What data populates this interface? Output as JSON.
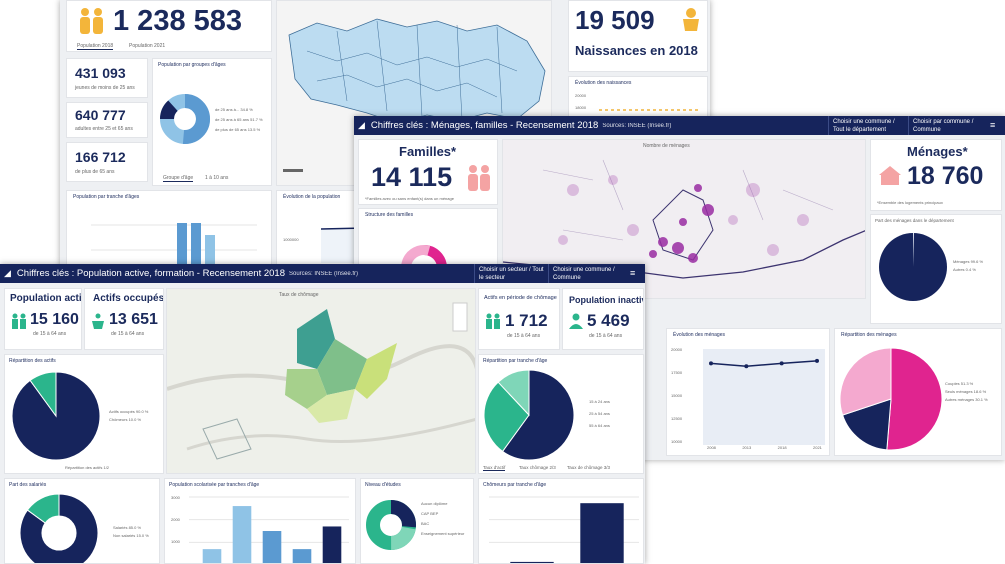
{
  "colors": {
    "navy": "#16245c",
    "teal": "#2bb58c",
    "magenta": "#e0248f",
    "pink": "#f4a9cf",
    "lightblue": "#8fc3e6",
    "steel": "#5b9ad1",
    "purple": "#a8449e",
    "lime": "#c9e07a"
  },
  "back": {
    "population": "1 238 583",
    "pop_tabs": [
      "Population 2018",
      "Population 2021"
    ],
    "jeunes_value": "431 093",
    "jeunes_label": "jeunes de moins de 25 ans",
    "adultes_value": "640 777",
    "adultes_label": "adultes entre 25 et 65 ans",
    "seniors_value": "166 712",
    "seniors_label": "de plus de 65 ans",
    "groupes_title": "Population par groupes d'âges",
    "groupes_legend": [
      "de 25 ans à... 34.8 %",
      "de 25 ans à 65 ans 51.7 %",
      "de plus de 65 ans 13.5 %"
    ],
    "groupes_tabs": [
      "Groupe d'âge",
      "1 à 10 ans"
    ],
    "tranche_title": "Population par tranche d'âges",
    "evolution_title": "Évolution de la population",
    "evolution_axis": "1000000",
    "naissances_value": "19 509",
    "naissances_label": "Naissances en 2018",
    "evol_naiss_title": "Évolution des naissances",
    "evol_naiss_ticks": [
      "20000",
      "18000"
    ]
  },
  "middle": {
    "title": "Chiffres clés : Ménages, familles - Recensement 2018",
    "source": "Sources: INSEE (Insee.fr)",
    "commune_select": "Choisir une commune / Tout le département",
    "commune_select2": "Choisir par commune / Commune",
    "familles_title": "Familles*",
    "familles_value": "14 115",
    "familles_note": "*Familles avec ou sans enfant(s) dans un ménage",
    "structure_title": "Structure des familles",
    "map_title": "Nombre de ménages",
    "menages_title": "Ménages*",
    "menages_value": "18 760",
    "menages_note": "*Ensemble des logements principaux",
    "part_title": "Part des ménages dans le département",
    "part_legend": [
      "Ménages 99.6 %",
      "Autres 0.4 %"
    ],
    "evol_title": "Évolution des ménages",
    "evol_years": [
      "2008",
      "2013",
      "2018",
      "2021"
    ],
    "evol_ticks": [
      "20000",
      "17500",
      "15000",
      "12500",
      "10000"
    ],
    "repartition_title": "Répartition des ménages",
    "repartition_legend": [
      "Couples 51.3 %",
      "Seuls ménages 18.6 %",
      "Autres ménages 30.1 %"
    ]
  },
  "front": {
    "title": "Chiffres clés : Population active, formation - Recensement 2018",
    "source": "Sources: INSEE (Insee.fr)",
    "commune_select": "Choisir un secteur / Tout le secteur",
    "commune_select2": "Choisir une commune / Commune",
    "pop_active_title": "Population active",
    "pop_active_value": "15 160",
    "pop_active_label": "de 15 à 64 ans",
    "actifs_title": "Actifs occupés",
    "actifs_value": "13 651",
    "actifs_label": "de 15 à 64 ans",
    "map_title": "Taux de chômage",
    "chomage_title": "Actifs en période de chômage",
    "chomage_value": "1 712",
    "chomage_label": "de 15 à 64 ans",
    "inactive_title": "Population inactive",
    "inactive_value": "5 469",
    "inactive_label": "de 15 à 64 ans",
    "repartition_title": "Répartition des actifs",
    "repartition_legend": [
      "Actifs occupés 90.0 %",
      "Chômeurs 10.0 %"
    ],
    "repartition_footer": "Répartition des actifs 1/2",
    "tranche_title": "Répartition par tranche d'âge",
    "tranche_legend": [
      "15 à 24 ans",
      "25 à 54 ans",
      "55 à 64 ans"
    ],
    "tranche_tabs": [
      "Taux d'actif",
      "Taux chômage 2/3",
      "Taux de chômage 3/3"
    ],
    "salaries_title": "Part des salariés",
    "salaries_legend": [
      "Salariés 85.0 %",
      "Non salariés 15.0 %"
    ],
    "scolaire_title": "Population scolarisée par tranches d'âge",
    "scolaire_ticks": [
      "3000",
      "2000",
      "1000"
    ],
    "diplome_title": "Niveau d'études",
    "diplome_legend": [
      "Aucun diplôme",
      "CAP BEP",
      "BAC",
      "Enseignement supérieur"
    ],
    "chomeurs_age_title": "Chômeurs par tranche d'âge"
  },
  "chart_data": [
    {
      "type": "pie",
      "title": "Répartition des actifs",
      "categories": [
        "Actifs occupés",
        "Chômeurs"
      ],
      "values": [
        90.0,
        10.0
      ]
    },
    {
      "type": "pie",
      "title": "Répartition par tranche d'âge",
      "categories": [
        "15 à 24 ans",
        "25 à 54 ans",
        "55 à 64 ans"
      ],
      "values": [
        60,
        28,
        12
      ]
    },
    {
      "type": "pie",
      "title": "Part des ménages dans le département",
      "categories": [
        "Ménages",
        "Autres"
      ],
      "values": [
        99.6,
        0.4
      ]
    },
    {
      "type": "pie",
      "title": "Répartition des ménages",
      "categories": [
        "Couples",
        "Seuls ménages",
        "Autres ménages"
      ],
      "values": [
        51.3,
        18.6,
        30.1
      ]
    },
    {
      "type": "line",
      "title": "Évolution des ménages",
      "x": [
        "2008",
        "2013",
        "2018",
        "2021"
      ],
      "values": [
        18500,
        18200,
        18500,
        18760
      ],
      "ylim": [
        10000,
        20000
      ]
    },
    {
      "type": "bar",
      "title": "Population scolarisée par tranches d'âge",
      "values": [
        700,
        2600,
        1500,
        700,
        1700
      ],
      "ylim": [
        0,
        3000
      ]
    },
    {
      "type": "bar",
      "title": "Chômeurs par tranche d'âge",
      "values": [
        5,
        100
      ],
      "ylim": [
        0,
        110
      ]
    },
    {
      "type": "bar",
      "title": "Population par tranche d'âges",
      "values": [
        95,
        95,
        70
      ],
      "ylim": [
        0,
        100
      ]
    }
  ]
}
